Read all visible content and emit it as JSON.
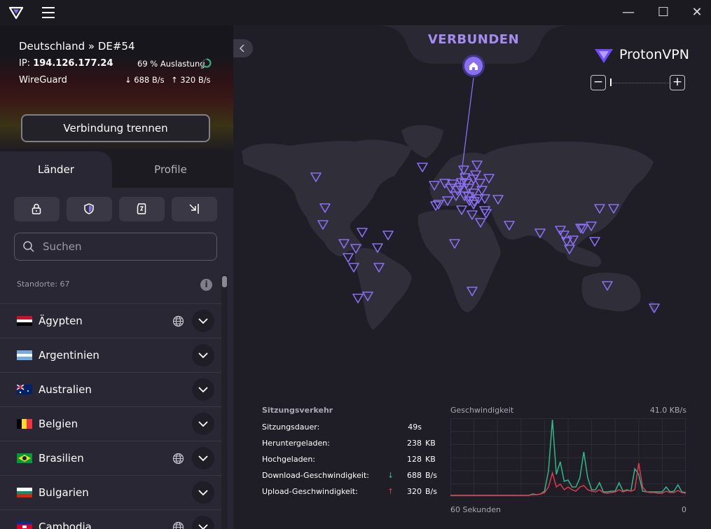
{
  "window": {
    "minimize": "—",
    "maximize": "☐",
    "close": "✕"
  },
  "connection": {
    "server": "Deutschland » DE#54",
    "ip_label": "IP:",
    "ip": "194.126.177.24",
    "load": "69 % Auslastung",
    "protocol": "WireGuard",
    "download": "688 B/s",
    "upload": "320 B/s",
    "disconnect_label": "Verbindung trennen"
  },
  "tabs": {
    "countries": "Länder",
    "profiles": "Profile"
  },
  "search": {
    "placeholder": "Suchen"
  },
  "locations_count": "Standorte: 67",
  "countries": [
    {
      "name": "Ägypten",
      "globe": true
    },
    {
      "name": "Argentinien",
      "globe": false
    },
    {
      "name": "Australien",
      "globe": false
    },
    {
      "name": "Belgien",
      "globe": false
    },
    {
      "name": "Brasilien",
      "globe": true
    },
    {
      "name": "Bulgarien",
      "globe": false
    },
    {
      "name": "Cambodia",
      "globe": true
    }
  ],
  "map": {
    "status": "VERBUNDEN",
    "brand": "ProtonVPN",
    "zoom_out": "−",
    "zoom_in": "+"
  },
  "session": {
    "title": "Sitzungsverkehr",
    "rows": [
      {
        "label": "Sitzungsdauer:",
        "value": "49s",
        "unit": ""
      },
      {
        "label": "Heruntergeladen:",
        "value": "238",
        "unit": "KB"
      },
      {
        "label": "Hochgeladen:",
        "value": "128",
        "unit": "KB"
      },
      {
        "label": "Download-Geschwindigkeit:",
        "value": "688",
        "unit": "B/s"
      },
      {
        "label": "Upload-Geschwindigkeit:",
        "value": "320",
        "unit": "B/s"
      }
    ]
  },
  "speed": {
    "title": "Geschwindigkeit",
    "max": "41.0  KB/s",
    "x_left": "60 Sekunden",
    "x_right": "0"
  },
  "colors": {
    "accent": "#8a6ef4",
    "download": "#2fb98a",
    "upload": "#e0394f"
  }
}
